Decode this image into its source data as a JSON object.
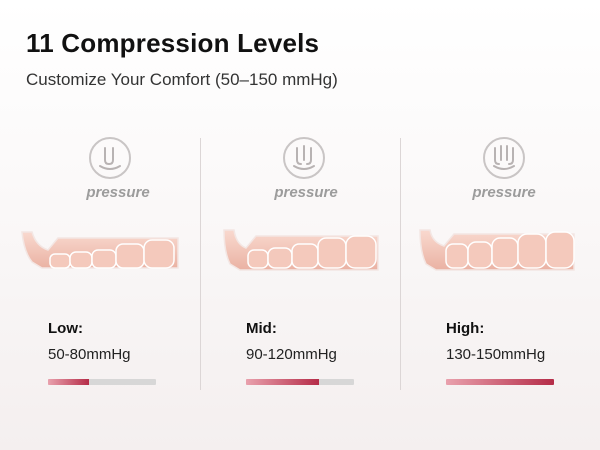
{
  "header": {
    "title": "11 Compression Levels",
    "subtitle": "Customize Your Comfort (50–150 mmHg)"
  },
  "levels": [
    {
      "icon": "pressure-icon",
      "icon_label": "pressure",
      "name": "Low:",
      "range": "50-80mmHg",
      "fill_fraction": 0.38,
      "chambers_inflated": "low"
    },
    {
      "icon": "pressure-icon",
      "icon_label": "pressure",
      "name": "Mid:",
      "range": "90-120mmHg",
      "fill_fraction": 0.68,
      "chambers_inflated": "mid"
    },
    {
      "icon": "pressure-icon",
      "icon_label": "pressure",
      "name": "High:",
      "range": "130-150mmHg",
      "fill_fraction": 1.0,
      "chambers_inflated": "high"
    }
  ],
  "colors": {
    "accent_dark": "#b52c48",
    "accent_light": "#e9a1ad",
    "bar_track": "#d7d7d7",
    "leg_fill": "#f2c2b4"
  }
}
